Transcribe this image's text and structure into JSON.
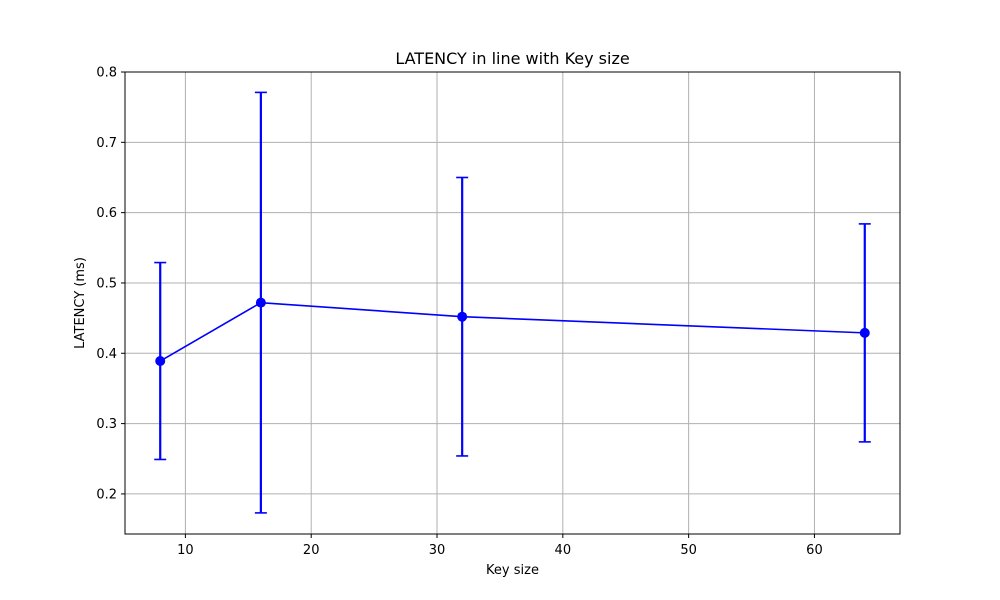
{
  "chart_data": {
    "type": "line",
    "title": "LATENCY in line with Key size",
    "xlabel": "Key size",
    "ylabel": "LATENCY (ms)",
    "xlim": [
      5.2,
      66.8
    ],
    "ylim": [
      0.143,
      0.8
    ],
    "xticks": [
      10,
      20,
      30,
      40,
      50,
      60
    ],
    "yticks": [
      0.2,
      0.3,
      0.4,
      0.5,
      0.6,
      0.7,
      0.8
    ],
    "xtick_labels": [
      "10",
      "20",
      "30",
      "40",
      "50",
      "60"
    ],
    "ytick_labels": [
      "0.2",
      "0.3",
      "0.4",
      "0.5",
      "0.6",
      "0.7",
      "0.8"
    ],
    "grid": true,
    "series": [
      {
        "color": "#0000ff",
        "marker": "circle",
        "error_bars": true,
        "points": [
          {
            "x": 8,
            "y": 0.389,
            "err_low": 0.249,
            "err_high": 0.529
          },
          {
            "x": 16,
            "y": 0.472,
            "err_low": 0.173,
            "err_high": 0.771
          },
          {
            "x": 32,
            "y": 0.452,
            "err_low": 0.254,
            "err_high": 0.65
          },
          {
            "x": 64,
            "y": 0.429,
            "err_low": 0.274,
            "err_high": 0.584
          }
        ]
      }
    ]
  }
}
